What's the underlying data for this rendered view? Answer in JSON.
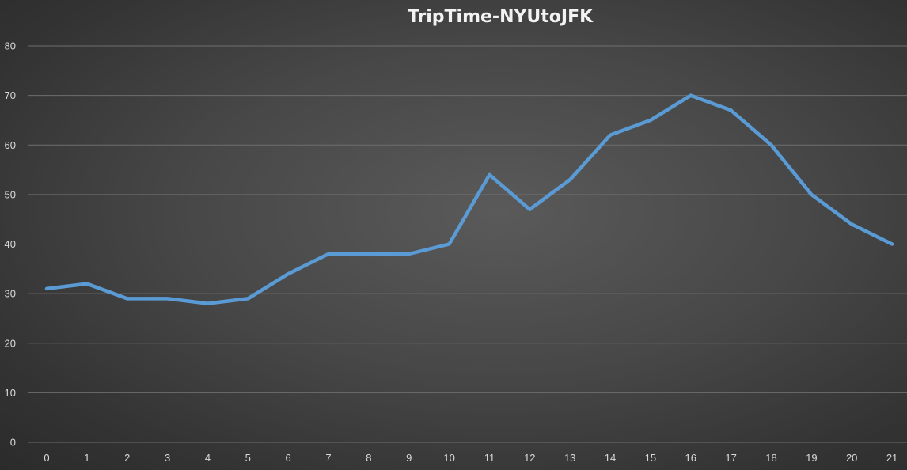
{
  "chart_data": {
    "type": "line",
    "title": "TripTime-NYUtoJFK",
    "xlabel": "",
    "ylabel": "",
    "x": [
      0,
      1,
      2,
      3,
      4,
      5,
      6,
      7,
      8,
      9,
      10,
      11,
      12,
      13,
      14,
      15,
      16,
      17,
      18,
      19,
      20,
      21
    ],
    "y_ticks": [
      0,
      10,
      20,
      30,
      40,
      50,
      60,
      70,
      80
    ],
    "ylim": [
      0,
      80
    ],
    "grid": "horizontal",
    "legend": "none",
    "series": [
      {
        "values": [
          31,
          32,
          29,
          29,
          28,
          29,
          34,
          38,
          38,
          38,
          40,
          54,
          47,
          53,
          62,
          65,
          70,
          67,
          60,
          50,
          44,
          40
        ],
        "color": "#5b9bd5"
      }
    ],
    "colors": {
      "line": "#5b9bd5",
      "grid": "#6e6e6e",
      "text": "#d9d9d9",
      "title": "#f2f2f2"
    }
  }
}
